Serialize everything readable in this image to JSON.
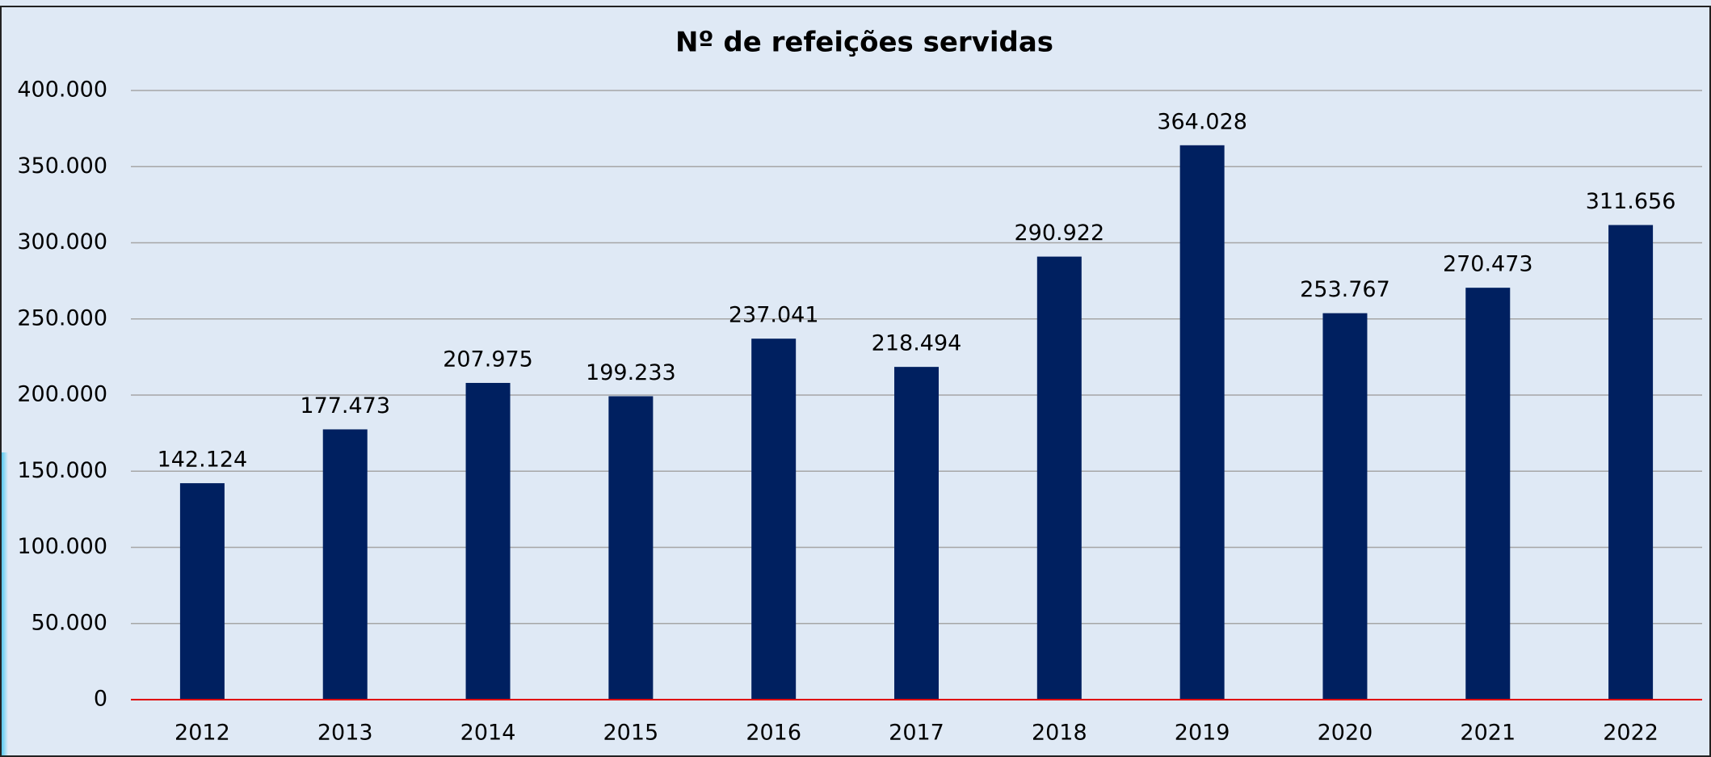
{
  "chart_data": {
    "type": "bar",
    "title": "Nº de refeições servidas",
    "categories": [
      "2012",
      "2013",
      "2014",
      "2015",
      "2016",
      "2017",
      "2018",
      "2019",
      "2020",
      "2021",
      "2022"
    ],
    "values": [
      142124,
      177473,
      207975,
      199233,
      237041,
      218494,
      290922,
      364028,
      253767,
      270473,
      311656
    ],
    "value_labels": [
      "142.124",
      "177.473",
      "207.975",
      "199.233",
      "237.041",
      "218.494",
      "290.922",
      "364.028",
      "253.767",
      "270.473",
      "311.656"
    ],
    "color": "#002060",
    "ylim": [
      0,
      400000
    ],
    "yticks": [
      0,
      {
        "value": 50000,
        "label": "50.000"
      },
      {
        "value": 100000,
        "label": "100.000"
      },
      {
        "value": 150000,
        "label": "150.000"
      },
      {
        "value": 200000,
        "label": "200.000"
      },
      {
        "value": 250000,
        "label": "250.000"
      },
      {
        "value": 300000,
        "label": "300.000"
      },
      {
        "value": 350000,
        "label": "350.000"
      },
      {
        "value": 400000,
        "label": "400.000"
      }
    ],
    "grid": true
  }
}
